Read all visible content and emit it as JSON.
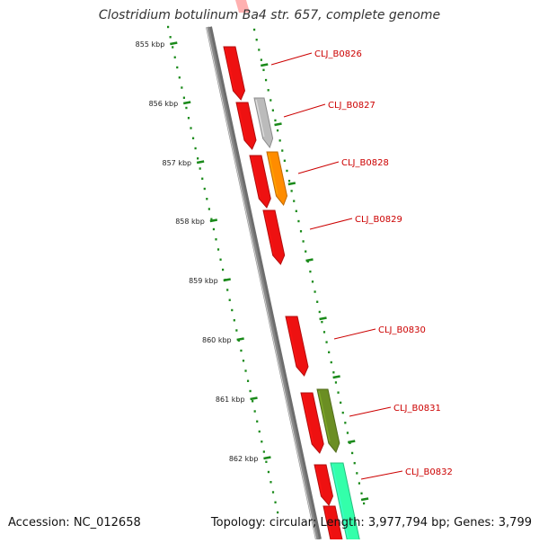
{
  "title": "Clostridium botulinum Ba4 str. 657, complete genome",
  "footer": {
    "accession": "Accession: NC_012658",
    "summary": "Topology: circular; Length: 3,977,794 bp; Genes: 3,799"
  },
  "colors": {
    "backbone": "#888888",
    "tick_dots": "#1a8a1a",
    "gene_red": "#ee1111",
    "gene_grey": "#bbbbbb",
    "gene_orange": "#ff8c00",
    "gene_olive": "#6b8e23",
    "gene_teal": "#33ffaa",
    "label_red": "#cc0000"
  },
  "scale": {
    "ticks": [
      {
        "label": "855 kbp"
      },
      {
        "label": "856 kbp"
      },
      {
        "label": "857 kbp"
      },
      {
        "label": "858 kbp"
      },
      {
        "label": "859 kbp"
      },
      {
        "label": "860 kbp"
      },
      {
        "label": "861 kbp"
      },
      {
        "label": "862 kbp"
      }
    ]
  },
  "gene_labels": [
    {
      "text": "CLJ_B0826"
    },
    {
      "text": "CLJ_B0827"
    },
    {
      "text": "CLJ_B0828"
    },
    {
      "text": "CLJ_B0829"
    },
    {
      "text": "CLJ_B0830"
    },
    {
      "text": "CLJ_B0831"
    },
    {
      "text": "CLJ_B0832"
    }
  ]
}
